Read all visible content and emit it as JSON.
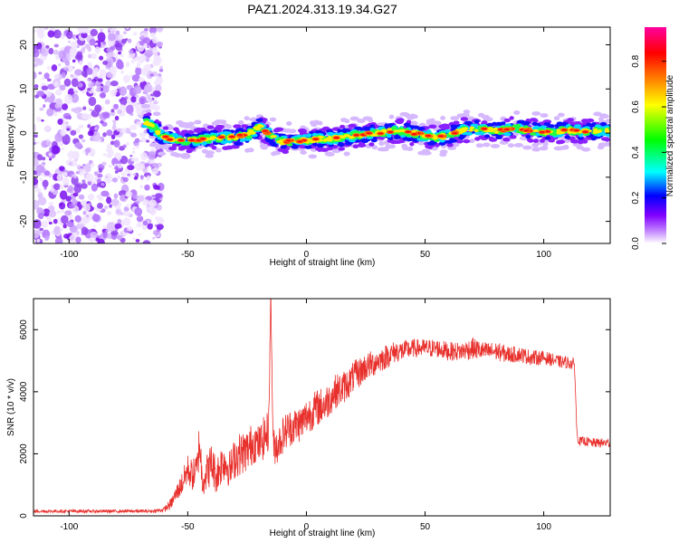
{
  "figure_title": "PAZ1.2024.313.19.34.G27",
  "chart_data": [
    {
      "type": "heatmap",
      "title": "",
      "xlabel": "Height of straight line (km)",
      "ylabel": "Frequency (Hz)",
      "xlim": [
        -115,
        128
      ],
      "ylim": [
        -25,
        24
      ],
      "xticks": [
        -100,
        -50,
        0,
        50,
        100
      ],
      "yticks": [
        -20,
        -10,
        0,
        10,
        20
      ],
      "xtick_labels": [
        "-100",
        "-50",
        "0",
        "50",
        "100"
      ],
      "ytick_labels": [
        "-20",
        "-10",
        "0",
        "10",
        "20"
      ],
      "noise_region_x": [
        -115,
        -61
      ],
      "colorbar": {
        "label": "Normalized spectral amplitude",
        "range": [
          0,
          0.95
        ],
        "ticks": [
          0.0,
          0.2,
          0.4,
          0.6,
          0.8
        ],
        "tick_labels": [
          "0.0",
          "0.2",
          "0.4",
          "0.6",
          "0.8"
        ],
        "colors": [
          "#ffffff",
          "#c080ff",
          "#8000ff",
          "#0000ff",
          "#00ffff",
          "#00ff00",
          "#ffff00",
          "#ff8000",
          "#ff0000",
          "#ff00a0"
        ]
      },
      "ridge": {
        "x": [
          -68,
          -65,
          -60,
          -55,
          -50,
          -45,
          -40,
          -35,
          -30,
          -25,
          -22,
          -20,
          -17,
          -15,
          -12,
          -10,
          -5,
          0,
          5,
          10,
          15,
          20,
          25,
          30,
          35,
          40,
          45,
          50,
          55,
          60,
          65,
          70,
          75,
          80,
          85,
          90,
          95,
          100,
          105,
          110,
          115,
          120,
          125,
          128
        ],
        "y": [
          2.5,
          1.5,
          -1,
          -1.5,
          -1.8,
          -1.5,
          -1.2,
          -1.0,
          -0.8,
          -0.5,
          0.5,
          1.5,
          0.2,
          -0.5,
          -1.5,
          -2.0,
          -1.8,
          -1.6,
          -1.4,
          -1.2,
          -1.0,
          -0.6,
          -0.2,
          0.0,
          0.4,
          0.5,
          0.0,
          -0.5,
          -1.0,
          -0.5,
          0.5,
          1.0,
          0.8,
          0.5,
          0.8,
          1.0,
          0.5,
          0.3,
          0.4,
          0.6,
          0.5,
          0.4,
          0.6,
          0.5
        ]
      }
    },
    {
      "type": "line",
      "title": "",
      "xlabel": "Height of straight line (km)",
      "ylabel": "SNR (10 * v/v)",
      "xlim": [
        -115,
        128
      ],
      "ylim": [
        0,
        7000
      ],
      "xticks": [
        -100,
        -50,
        0,
        50,
        100
      ],
      "yticks": [
        0,
        2000,
        4000,
        6000
      ],
      "xtick_labels": [
        "-100",
        "-50",
        "0",
        "50",
        "100"
      ],
      "ytick_labels": [
        "0",
        "2000",
        "4000",
        "6000"
      ],
      "color": "#e8302c",
      "series": [
        {
          "x": [
            -115,
            -100,
            -80,
            -65,
            -60,
            -57,
            -55,
            -52,
            -50,
            -48,
            -46,
            -45,
            -44,
            -42,
            -40,
            -38,
            -35,
            -32,
            -30,
            -28,
            -25,
            -22,
            -20,
            -18,
            -16,
            -15,
            -14,
            -12,
            -10,
            -8,
            -5,
            -2,
            0,
            3,
            5,
            8,
            10,
            12,
            15,
            18,
            20,
            22,
            25,
            28,
            30,
            33,
            35,
            38,
            40,
            45,
            50,
            55,
            60,
            65,
            70,
            75,
            80,
            85,
            90,
            95,
            100,
            105,
            108,
            110,
            112,
            113,
            114,
            115,
            118,
            120,
            125,
            128
          ],
          "y": [
            150,
            150,
            150,
            150,
            200,
            400,
            700,
            1100,
            1500,
            1300,
            1500,
            2500,
            1200,
            1400,
            1700,
            1300,
            1800,
            1500,
            1900,
            2000,
            2100,
            2400,
            2300,
            2500,
            2700,
            7000,
            2200,
            2300,
            2600,
            2800,
            2900,
            3000,
            3200,
            3400,
            3500,
            3600,
            3800,
            4000,
            4100,
            4300,
            4500,
            4600,
            4800,
            4900,
            5000,
            5100,
            5200,
            5300,
            5300,
            5400,
            5400,
            5400,
            5300,
            5300,
            5400,
            5300,
            5300,
            5200,
            5200,
            5100,
            5100,
            5000,
            4950,
            4950,
            4900,
            4850,
            2600,
            2400,
            2400,
            2350,
            2350,
            2350
          ],
          "noise": [
            50,
            50,
            50,
            50,
            80,
            180,
            250,
            400,
            500,
            500,
            600,
            800,
            600,
            600,
            700,
            600,
            700,
            600,
            700,
            700,
            700,
            700,
            600,
            700,
            700,
            0,
            600,
            600,
            600,
            600,
            600,
            600,
            600,
            600,
            600,
            600,
            550,
            550,
            550,
            500,
            500,
            500,
            450,
            450,
            400,
            400,
            380,
            350,
            350,
            300,
            300,
            300,
            300,
            300,
            350,
            300,
            300,
            280,
            250,
            250,
            220,
            200,
            200,
            200,
            200,
            200,
            150,
            150,
            150,
            150,
            150,
            150
          ]
        }
      ]
    }
  ]
}
